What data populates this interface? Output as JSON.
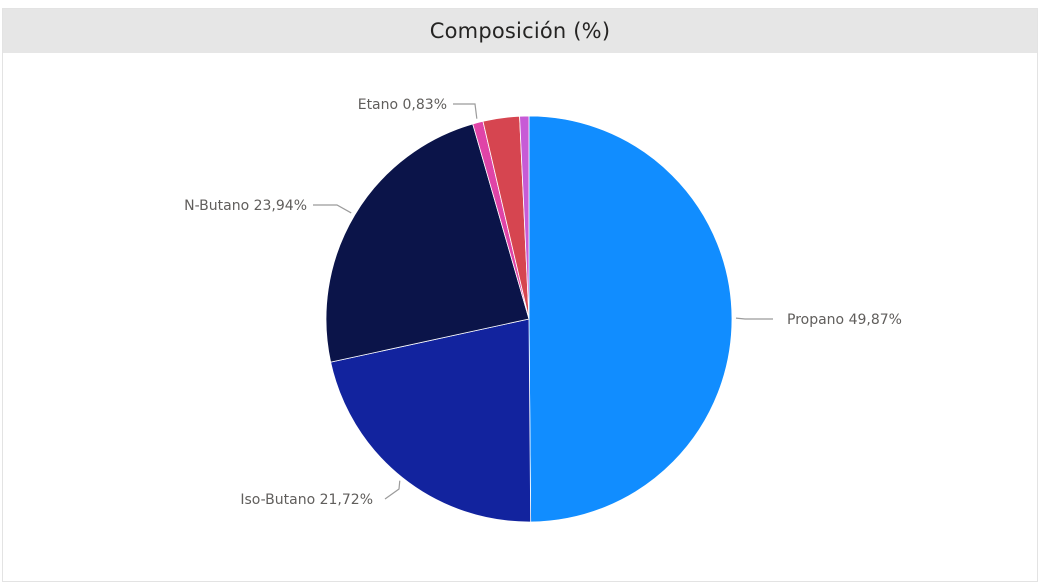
{
  "chart_data": {
    "type": "pie",
    "title": "Composición (%)",
    "slices": [
      {
        "name": "Propano",
        "value": 49.87,
        "label": "Propano 49,87%",
        "color": "#118dff"
      },
      {
        "name": "Iso-Butano",
        "value": 21.72,
        "label": "Iso-Butano 21,72%",
        "color": "#12239e"
      },
      {
        "name": "N-Butano",
        "value": 23.94,
        "label": "N-Butano 23,94%",
        "color": "#0b1449"
      },
      {
        "name": "Etano",
        "value": 0.83,
        "label": "Etano 0,83%",
        "color": "#e044a7"
      },
      {
        "name": "",
        "value": 2.9,
        "label": "",
        "color": "#d64550"
      },
      {
        "name": "",
        "value": 0.74,
        "label": "",
        "color": "#c75bd6"
      }
    ],
    "start_angle_deg": 0,
    "direction": "clockwise",
    "legend": "none",
    "data_labels": "outside"
  },
  "colors": {
    "title_bar_bg": "#e6e6e6",
    "label_text": "#605e5c",
    "leader_line": "#9b9b9b"
  }
}
